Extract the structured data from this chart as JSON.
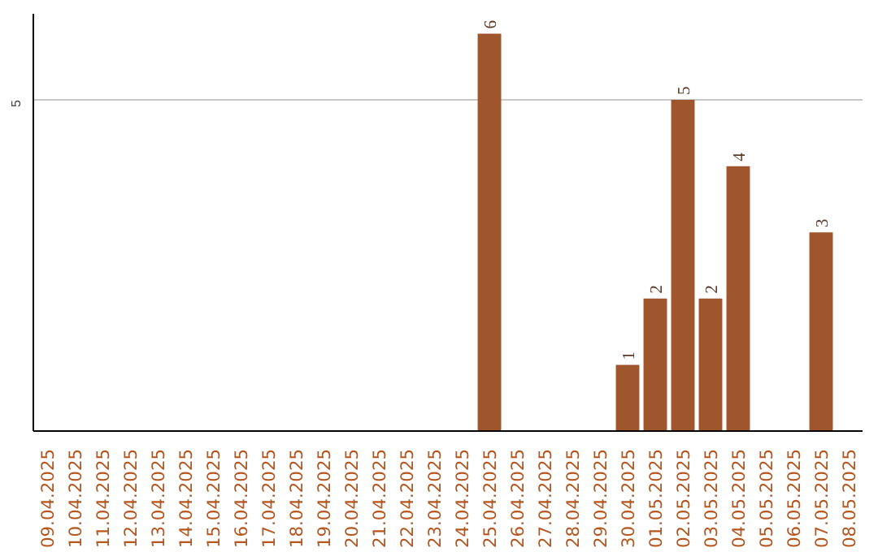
{
  "chart_data": {
    "type": "bar",
    "categories": [
      "09.04.2025",
      "10.04.2025",
      "11.04.2025",
      "12.04.2025",
      "13.04.2025",
      "14.04.2025",
      "15.04.2025",
      "16.04.2025",
      "17.04.2025",
      "18.04.2025",
      "19.04.2025",
      "20.04.2025",
      "21.04.2025",
      "22.04.2025",
      "23.04.2025",
      "24.04.2025",
      "25.04.2025",
      "26.04.2025",
      "27.04.2025",
      "28.04.2025",
      "29.04.2025",
      "30.04.2025",
      "01.05.2025",
      "02.05.2025",
      "03.05.2025",
      "04.05.2025",
      "05.05.2025",
      "06.05.2025",
      "07.05.2025",
      "08.05.2025"
    ],
    "values": [
      null,
      null,
      null,
      null,
      null,
      null,
      null,
      null,
      null,
      null,
      null,
      null,
      null,
      null,
      null,
      null,
      6,
      null,
      null,
      null,
      null,
      1,
      2,
      5,
      2,
      4,
      null,
      null,
      3,
      null
    ],
    "color": "#a0562c",
    "ylim": [
      0,
      6.3
    ],
    "yticks": [
      5
    ],
    "grid": "y",
    "data_labels": true
  }
}
